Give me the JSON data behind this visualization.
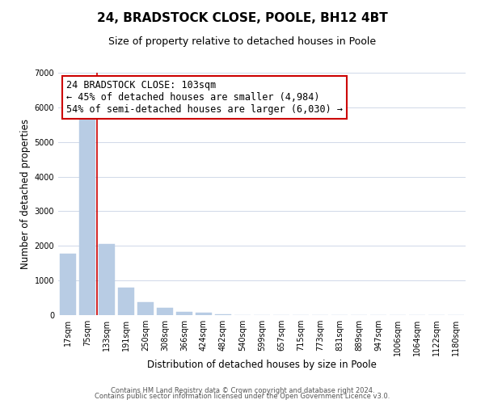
{
  "title": "24, BRADSTOCK CLOSE, POOLE, BH12 4BT",
  "subtitle": "Size of property relative to detached houses in Poole",
  "xlabel": "Distribution of detached houses by size in Poole",
  "ylabel": "Number of detached properties",
  "bar_labels": [
    "17sqm",
    "75sqm",
    "133sqm",
    "191sqm",
    "250sqm",
    "308sqm",
    "366sqm",
    "424sqm",
    "482sqm",
    "540sqm",
    "599sqm",
    "657sqm",
    "715sqm",
    "773sqm",
    "831sqm",
    "889sqm",
    "947sqm",
    "1006sqm",
    "1064sqm",
    "1122sqm",
    "1180sqm"
  ],
  "bar_values": [
    1780,
    5730,
    2050,
    800,
    370,
    220,
    100,
    60,
    30,
    10,
    5,
    3,
    2,
    0,
    0,
    0,
    0,
    0,
    0,
    0,
    0
  ],
  "bar_color": "#b8cce4",
  "bar_edge_color": "#b8cce4",
  "vline_color": "#cc0000",
  "annotation_text": "24 BRADSTOCK CLOSE: 103sqm\n← 45% of detached houses are smaller (4,984)\n54% of semi-detached houses are larger (6,030) →",
  "annotation_box_color": "#ffffff",
  "annotation_box_edge_color": "#cc0000",
  "ylim": [
    0,
    7000
  ],
  "yticks": [
    0,
    1000,
    2000,
    3000,
    4000,
    5000,
    6000,
    7000
  ],
  "grid_color": "#d0d8e8",
  "background_color": "#ffffff",
  "footer1": "Contains HM Land Registry data © Crown copyright and database right 2024.",
  "footer2": "Contains public sector information licensed under the Open Government Licence v3.0.",
  "title_fontsize": 11,
  "subtitle_fontsize": 9,
  "axis_label_fontsize": 8.5,
  "tick_fontsize": 7,
  "annotation_fontsize": 8.5,
  "footer_fontsize": 6
}
